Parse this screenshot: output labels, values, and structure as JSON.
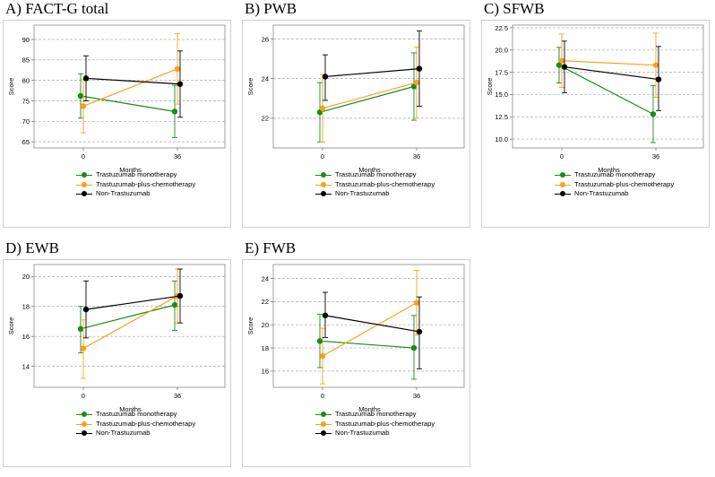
{
  "colors": {
    "mono": "#1a8a1a",
    "chemo": "#f5a21b",
    "non": "#000000",
    "grid": "#aaaaaa",
    "frame": "#cfcfcf"
  },
  "series_names": [
    "Trastuzumab monotherapy",
    "Trastuzumab-plus-chemotherapy",
    "Non-Trastuzumab"
  ],
  "chart_data": [
    {
      "type": "line",
      "title": "A) FACT-G total",
      "xlabel": "Months",
      "ylabel": "Score",
      "categories": [
        "0",
        "36"
      ],
      "ylim": [
        63.5,
        93.5
      ],
      "yticks": [
        "65",
        "70",
        "75",
        "80",
        "85",
        "90"
      ],
      "series": [
        {
          "name": "Trastuzumab monotherapy",
          "values": [
            76.2,
            72.4
          ],
          "lower": [
            70.8,
            66.0
          ],
          "upper": [
            81.6,
            78.8
          ]
        },
        {
          "name": "Trastuzumab-plus-chemotherapy",
          "values": [
            73.7,
            82.8
          ],
          "lower": [
            67.2,
            74.2
          ],
          "upper": [
            80.2,
            91.4
          ]
        },
        {
          "name": "Non-Trastuzumab",
          "values": [
            80.5,
            79.1
          ],
          "lower": [
            75.0,
            71.0
          ],
          "upper": [
            86.0,
            87.2
          ]
        }
      ]
    },
    {
      "type": "line",
      "title": "B) PWB",
      "xlabel": "Months",
      "ylabel": "Score",
      "categories": [
        "0",
        "36"
      ],
      "ylim": [
        20.5,
        26.7
      ],
      "yticks": [
        "22",
        "24",
        "26"
      ],
      "series": [
        {
          "name": "Trastuzumab monotherapy",
          "values": [
            22.3,
            23.6
          ],
          "lower": [
            20.8,
            21.9
          ],
          "upper": [
            23.8,
            25.3
          ]
        },
        {
          "name": "Trastuzumab-plus-chemotherapy",
          "values": [
            22.5,
            23.8
          ],
          "lower": [
            20.8,
            22.0
          ],
          "upper": [
            24.2,
            25.6
          ]
        },
        {
          "name": "Non-Trastuzumab",
          "values": [
            24.1,
            24.5
          ],
          "lower": [
            22.9,
            22.6
          ],
          "upper": [
            25.2,
            26.4
          ]
        }
      ]
    },
    {
      "type": "line",
      "title": "C) SFWB",
      "xlabel": "Months",
      "ylabel": "Score",
      "categories": [
        "0",
        "36"
      ],
      "ylim": [
        9.0,
        22.8
      ],
      "yticks": [
        "10.0",
        "12.5",
        "15.0",
        "17.5",
        "20.0",
        "22.5"
      ],
      "series": [
        {
          "name": "Trastuzumab monotherapy",
          "values": [
            18.3,
            12.8
          ],
          "lower": [
            16.3,
            9.6
          ],
          "upper": [
            20.3,
            16.0
          ]
        },
        {
          "name": "Trastuzumab-plus-chemotherapy",
          "values": [
            18.8,
            18.3
          ],
          "lower": [
            15.8,
            14.7
          ],
          "upper": [
            21.8,
            21.9
          ]
        },
        {
          "name": "Non-Trastuzumab",
          "values": [
            18.1,
            16.7
          ],
          "lower": [
            15.2,
            13.2
          ],
          "upper": [
            21.0,
            20.4
          ]
        }
      ]
    },
    {
      "type": "line",
      "title": "D) EWB",
      "xlabel": "Months",
      "ylabel": "Score",
      "categories": [
        "0",
        "36"
      ],
      "ylim": [
        12.6,
        20.8
      ],
      "yticks": [
        "14",
        "16",
        "18",
        "20"
      ],
      "series": [
        {
          "name": "Trastuzumab monotherapy",
          "values": [
            16.5,
            18.1
          ],
          "lower": [
            14.9,
            16.4
          ],
          "upper": [
            18.0,
            19.7
          ]
        },
        {
          "name": "Trastuzumab-plus-chemotherapy",
          "values": [
            15.2,
            18.7
          ],
          "lower": [
            13.2,
            16.9
          ],
          "upper": [
            17.1,
            20.5
          ]
        },
        {
          "name": "Non-Trastuzumab",
          "values": [
            17.8,
            18.7
          ],
          "lower": [
            15.9,
            16.9
          ],
          "upper": [
            19.7,
            20.5
          ]
        }
      ]
    },
    {
      "type": "line",
      "title": "E) FWB",
      "xlabel": "Months",
      "ylabel": "Score",
      "categories": [
        "0",
        "36"
      ],
      "ylim": [
        14.6,
        25.2
      ],
      "yticks": [
        "16",
        "18",
        "20",
        "22",
        "24"
      ],
      "series": [
        {
          "name": "Trastuzumab monotherapy",
          "values": [
            18.6,
            18.0
          ],
          "lower": [
            16.3,
            15.3
          ],
          "upper": [
            20.9,
            20.8
          ]
        },
        {
          "name": "Trastuzumab-plus-chemotherapy",
          "values": [
            17.3,
            21.9
          ],
          "lower": [
            14.9,
            19.1
          ],
          "upper": [
            19.7,
            24.7
          ]
        },
        {
          "name": "Non-Trastuzumab",
          "values": [
            20.8,
            19.4
          ],
          "lower": [
            18.9,
            16.2
          ],
          "upper": [
            22.8,
            22.4
          ]
        }
      ]
    }
  ]
}
